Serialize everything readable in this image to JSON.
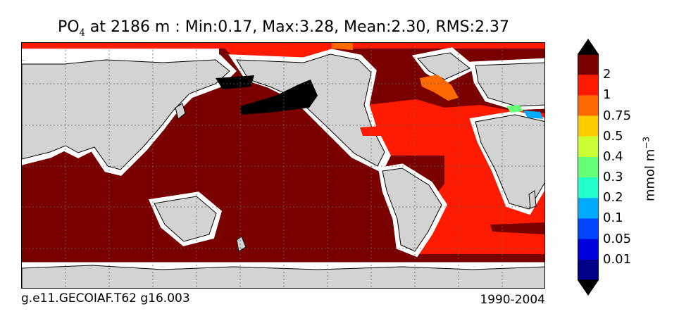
{
  "title": {
    "variable": "PO",
    "subscript": "4",
    "rest": " at 2186 m : Min:0.17, Max:3.28, Mean:2.30, RMS:2.37"
  },
  "footer": {
    "case_name": "g.e11.GECOIAF.T62 g16.003",
    "years": "1990-2004"
  },
  "colorbar": {
    "units_base": "mmol m",
    "units_exp": "−3",
    "labels": [
      "2",
      "1",
      "0.75",
      "0.5",
      "0.4",
      "0.3",
      "0.2",
      "0.1",
      "0.05",
      "0.01"
    ],
    "colors": [
      "#7a0000",
      "#ff1a00",
      "#ff6a00",
      "#ffcc00",
      "#ccff33",
      "#66ff77",
      "#22ffcc",
      "#00aaff",
      "#0044ff",
      "#0000dd",
      "#000088"
    ],
    "over_color": "#000000",
    "under_color": "#000000"
  },
  "map": {
    "land_color": "#d3d3d3",
    "missing_color": "#ffffff",
    "pacific_indian_color": "#7a0000",
    "atlantic_color": "#ff1a00",
    "high_color": "#000000"
  }
}
